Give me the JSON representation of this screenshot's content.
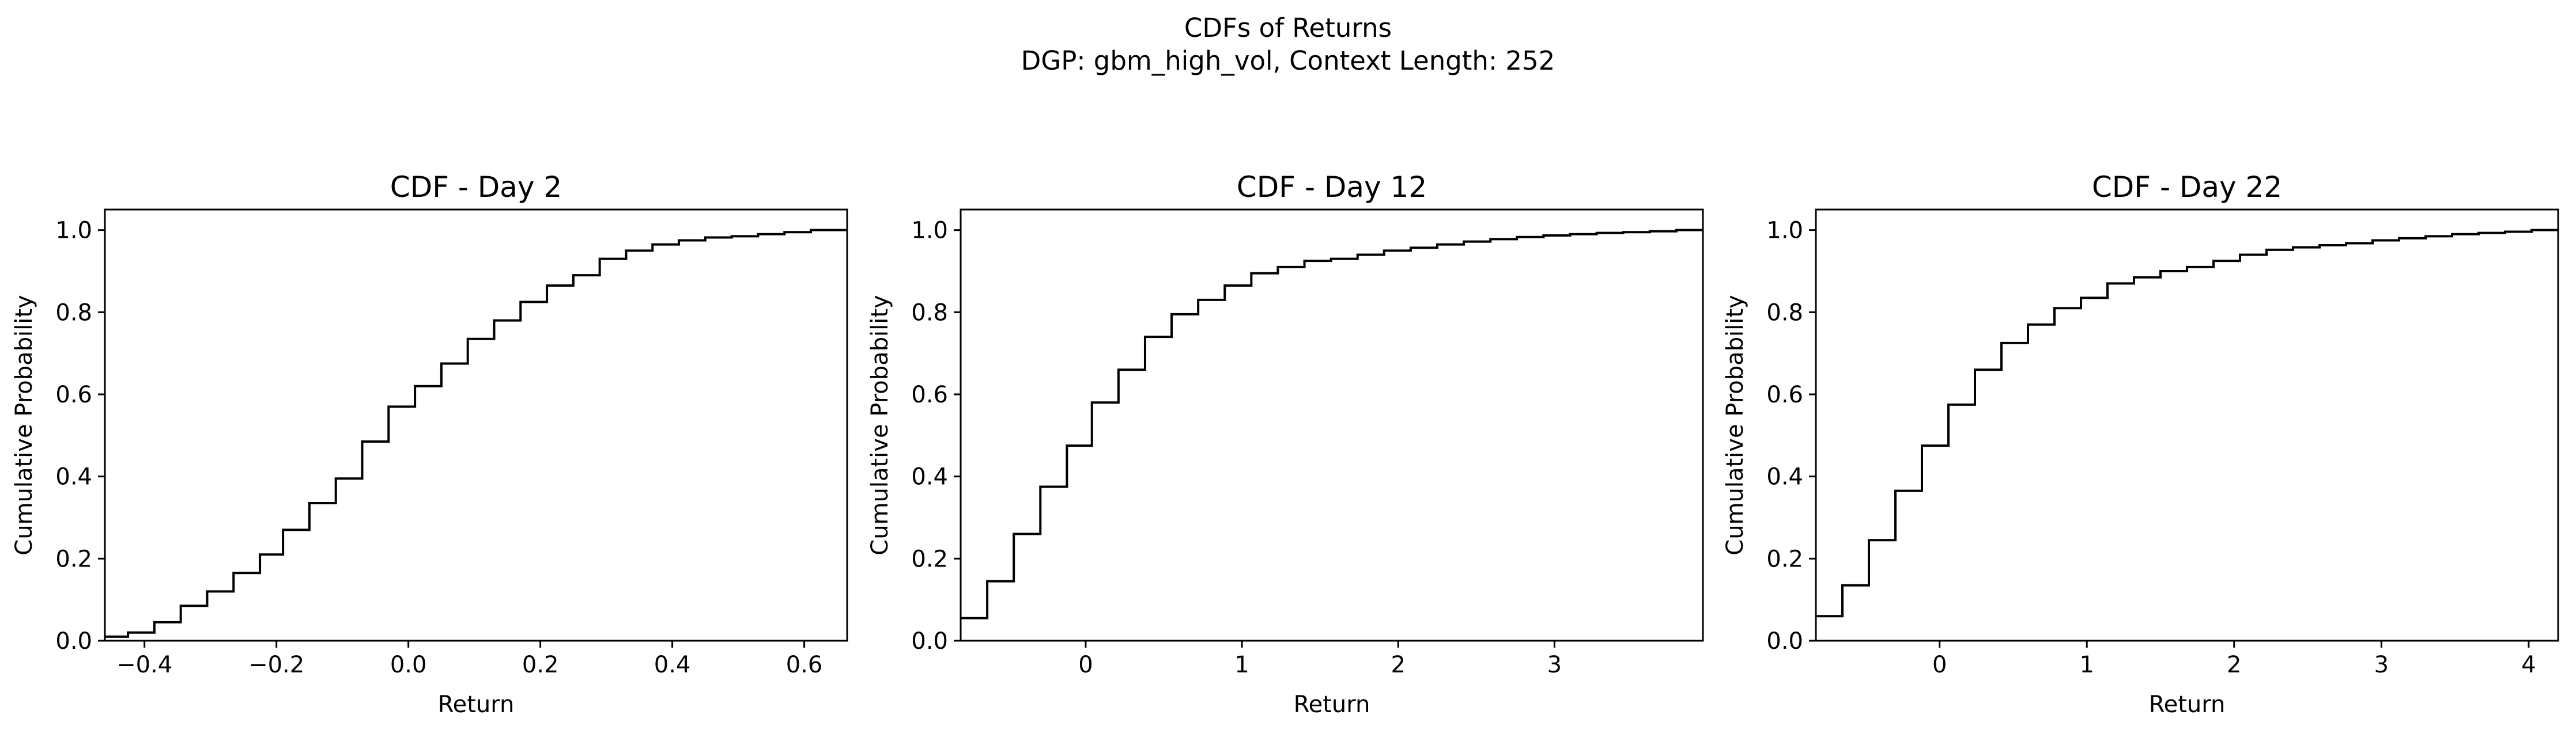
{
  "figure": {
    "suptitle_line1": "CDFs of Returns",
    "suptitle_line2": "DGP: gbm_high_vol, Context Length: 252"
  },
  "chart_data": [
    {
      "type": "line",
      "step": "post",
      "title": "CDF - Day 2",
      "xlabel": "Return",
      "ylabel": "Cumulative Probability",
      "xlim": [
        -0.46,
        0.665
      ],
      "ylim": [
        0,
        1.05
      ],
      "xticks": [
        -0.4,
        -0.2,
        0.0,
        0.2,
        0.4,
        0.6
      ],
      "xtick_labels": [
        "−0.4",
        "−0.2",
        "0.0",
        "0.2",
        "0.4",
        "0.6"
      ],
      "yticks": [
        0.0,
        0.2,
        0.4,
        0.6,
        0.8,
        1.0
      ],
      "ytick_labels": [
        "0.0",
        "0.2",
        "0.4",
        "0.6",
        "0.8",
        "1.0"
      ],
      "grid": false,
      "series": [
        {
          "color": "#000000",
          "x": [
            -0.46,
            -0.425,
            -0.385,
            -0.345,
            -0.305,
            -0.265,
            -0.225,
            -0.19,
            -0.15,
            -0.11,
            -0.07,
            -0.03,
            0.01,
            0.05,
            0.09,
            0.13,
            0.17,
            0.21,
            0.25,
            0.29,
            0.33,
            0.37,
            0.41,
            0.45,
            0.49,
            0.53,
            0.57,
            0.61,
            0.665
          ],
          "y": [
            0.01,
            0.02,
            0.045,
            0.085,
            0.12,
            0.165,
            0.21,
            0.27,
            0.335,
            0.395,
            0.485,
            0.57,
            0.62,
            0.675,
            0.735,
            0.78,
            0.825,
            0.865,
            0.89,
            0.93,
            0.95,
            0.965,
            0.975,
            0.982,
            0.985,
            0.99,
            0.995,
            1.0,
            1.0
          ]
        }
      ]
    },
    {
      "type": "line",
      "step": "post",
      "title": "CDF - Day 12",
      "xlabel": "Return",
      "ylabel": "Cumulative Probability",
      "xlim": [
        -0.8,
        3.95
      ],
      "ylim": [
        0,
        1.05
      ],
      "xticks": [
        0,
        1,
        2,
        3
      ],
      "xtick_labels": [
        "0",
        "1",
        "2",
        "3"
      ],
      "yticks": [
        0.0,
        0.2,
        0.4,
        0.6,
        0.8,
        1.0
      ],
      "ytick_labels": [
        "0.0",
        "0.2",
        "0.4",
        "0.6",
        "0.8",
        "1.0"
      ],
      "grid": false,
      "series": [
        {
          "color": "#000000",
          "x": [
            -0.8,
            -0.63,
            -0.46,
            -0.29,
            -0.12,
            0.04,
            0.21,
            0.38,
            0.55,
            0.72,
            0.89,
            1.06,
            1.23,
            1.4,
            1.57,
            1.74,
            1.91,
            2.08,
            2.25,
            2.42,
            2.59,
            2.76,
            2.93,
            3.1,
            3.27,
            3.44,
            3.61,
            3.78,
            3.95
          ],
          "y": [
            0.055,
            0.145,
            0.26,
            0.375,
            0.475,
            0.58,
            0.66,
            0.74,
            0.795,
            0.83,
            0.865,
            0.895,
            0.91,
            0.925,
            0.93,
            0.94,
            0.95,
            0.957,
            0.965,
            0.972,
            0.978,
            0.983,
            0.987,
            0.99,
            0.993,
            0.995,
            0.997,
            1.0,
            1.0
          ]
        }
      ]
    },
    {
      "type": "line",
      "step": "post",
      "title": "CDF - Day 22",
      "xlabel": "Return",
      "ylabel": "Cumulative Probability",
      "xlim": [
        -0.84,
        4.2
      ],
      "ylim": [
        0,
        1.05
      ],
      "xticks": [
        0,
        1,
        2,
        3,
        4
      ],
      "xtick_labels": [
        "0",
        "1",
        "2",
        "3",
        "4"
      ],
      "yticks": [
        0.0,
        0.2,
        0.4,
        0.6,
        0.8,
        1.0
      ],
      "ytick_labels": [
        "0.0",
        "0.2",
        "0.4",
        "0.6",
        "0.8",
        "1.0"
      ],
      "grid": false,
      "series": [
        {
          "color": "#000000",
          "x": [
            -0.84,
            -0.66,
            -0.48,
            -0.3,
            -0.12,
            0.06,
            0.24,
            0.42,
            0.6,
            0.78,
            0.96,
            1.14,
            1.32,
            1.5,
            1.68,
            1.86,
            2.04,
            2.22,
            2.4,
            2.58,
            2.76,
            2.94,
            3.12,
            3.3,
            3.48,
            3.66,
            3.84,
            4.02,
            4.2
          ],
          "y": [
            0.06,
            0.135,
            0.245,
            0.365,
            0.475,
            0.575,
            0.66,
            0.725,
            0.77,
            0.81,
            0.835,
            0.87,
            0.885,
            0.9,
            0.91,
            0.925,
            0.94,
            0.952,
            0.958,
            0.963,
            0.968,
            0.975,
            0.98,
            0.985,
            0.99,
            0.993,
            0.996,
            1.0,
            1.0
          ]
        }
      ]
    }
  ]
}
